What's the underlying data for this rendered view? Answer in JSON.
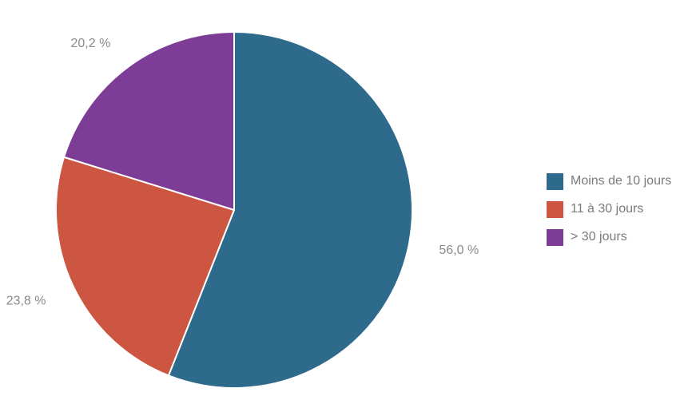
{
  "chart_data": {
    "type": "pie",
    "categories": [
      "Moins de 10 jours",
      "11 à 30 jours",
      "> 30 jours"
    ],
    "values": [
      56.0,
      23.8,
      20.2
    ],
    "value_labels": [
      "56,0 %",
      "23,8 %",
      "20,2 %"
    ],
    "colors": [
      "#2e6a8c",
      "#cc5641",
      "#7d3d96"
    ],
    "start_angle": "12 o'clock",
    "direction": "clockwise",
    "legend_position": "right",
    "title": ""
  }
}
